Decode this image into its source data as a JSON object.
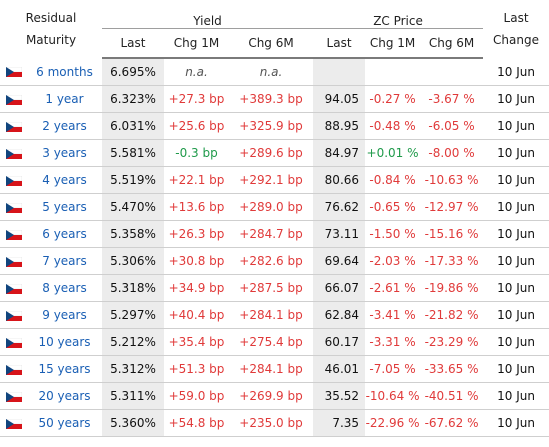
{
  "headers": {
    "residual_maturity": "Residual Maturity",
    "yield_group": "Yield",
    "zc_group": "ZC Price",
    "last_change": "Last Change",
    "last": "Last",
    "chg1m": "Chg 1M",
    "chg6m": "Chg 6M",
    "zc_last": "Last",
    "zc_chg1m": "Chg 1M",
    "zc_chg6m": "Chg 6M"
  },
  "colors": {
    "up": "#e03a3a",
    "down": "#1f9a4a",
    "link": "#1a5fb4"
  },
  "rows": [
    {
      "flag": "czech-flag-icon",
      "maturity": "6 months",
      "last": "6.695%",
      "chg1m": "n.a.",
      "chg6m": "n.a.",
      "zc_last": "",
      "zc_chg1m": "",
      "zc_chg6m": "",
      "date": "10 Jun"
    },
    {
      "flag": "czech-flag-icon",
      "maturity": "1 year",
      "last": "6.323%",
      "chg1m": "+27.3 bp",
      "chg6m": "+389.3 bp",
      "zc_last": "94.05",
      "zc_chg1m": "-0.27 %",
      "zc_chg6m": "-3.67 %",
      "date": "10 Jun"
    },
    {
      "flag": "czech-flag-icon",
      "maturity": "2 years",
      "last": "6.031%",
      "chg1m": "+25.6 bp",
      "chg6m": "+325.9 bp",
      "zc_last": "88.95",
      "zc_chg1m": "-0.48 %",
      "zc_chg6m": "-6.05 %",
      "date": "10 Jun"
    },
    {
      "flag": "czech-flag-icon",
      "maturity": "3 years",
      "last": "5.581%",
      "chg1m": "-0.3 bp",
      "chg6m": "+289.6 bp",
      "zc_last": "84.97",
      "zc_chg1m": "+0.01 %",
      "zc_chg6m": "-8.00 %",
      "date": "10 Jun"
    },
    {
      "flag": "czech-flag-icon",
      "maturity": "4 years",
      "last": "5.519%",
      "chg1m": "+22.1 bp",
      "chg6m": "+292.1 bp",
      "zc_last": "80.66",
      "zc_chg1m": "-0.84 %",
      "zc_chg6m": "-10.63 %",
      "date": "10 Jun"
    },
    {
      "flag": "czech-flag-icon",
      "maturity": "5 years",
      "last": "5.470%",
      "chg1m": "+13.6 bp",
      "chg6m": "+289.0 bp",
      "zc_last": "76.62",
      "zc_chg1m": "-0.65 %",
      "zc_chg6m": "-12.97 %",
      "date": "10 Jun"
    },
    {
      "flag": "czech-flag-icon",
      "maturity": "6 years",
      "last": "5.358%",
      "chg1m": "+26.3 bp",
      "chg6m": "+284.7 bp",
      "zc_last": "73.11",
      "zc_chg1m": "-1.50 %",
      "zc_chg6m": "-15.16 %",
      "date": "10 Jun"
    },
    {
      "flag": "czech-flag-icon",
      "maturity": "7 years",
      "last": "5.306%",
      "chg1m": "+30.8 bp",
      "chg6m": "+282.6 bp",
      "zc_last": "69.64",
      "zc_chg1m": "-2.03 %",
      "zc_chg6m": "-17.33 %",
      "date": "10 Jun"
    },
    {
      "flag": "czech-flag-icon",
      "maturity": "8 years",
      "last": "5.318%",
      "chg1m": "+34.9 bp",
      "chg6m": "+287.5 bp",
      "zc_last": "66.07",
      "zc_chg1m": "-2.61 %",
      "zc_chg6m": "-19.86 %",
      "date": "10 Jun"
    },
    {
      "flag": "czech-flag-icon",
      "maturity": "9 years",
      "last": "5.297%",
      "chg1m": "+40.4 bp",
      "chg6m": "+284.1 bp",
      "zc_last": "62.84",
      "zc_chg1m": "-3.41 %",
      "zc_chg6m": "-21.82 %",
      "date": "10 Jun"
    },
    {
      "flag": "czech-flag-icon",
      "maturity": "10 years",
      "last": "5.212%",
      "chg1m": "+35.4 bp",
      "chg6m": "+275.4 bp",
      "zc_last": "60.17",
      "zc_chg1m": "-3.31 %",
      "zc_chg6m": "-23.29 %",
      "date": "10 Jun"
    },
    {
      "flag": "czech-flag-icon",
      "maturity": "15 years",
      "last": "5.312%",
      "chg1m": "+51.3 bp",
      "chg6m": "+284.1 bp",
      "zc_last": "46.01",
      "zc_chg1m": "-7.05 %",
      "zc_chg6m": "-33.65 %",
      "date": "10 Jun"
    },
    {
      "flag": "czech-flag-icon",
      "maturity": "20 years",
      "last": "5.311%",
      "chg1m": "+59.0 bp",
      "chg6m": "+269.9 bp",
      "zc_last": "35.52",
      "zc_chg1m": "-10.64 %",
      "zc_chg6m": "-40.51 %",
      "date": "10 Jun"
    },
    {
      "flag": "czech-flag-icon",
      "maturity": "50 years",
      "last": "5.360%",
      "chg1m": "+54.8 bp",
      "chg6m": "+235.0 bp",
      "zc_last": "7.35",
      "zc_chg1m": "-22.96 %",
      "zc_chg6m": "-67.62 %",
      "date": "10 Jun"
    }
  ]
}
